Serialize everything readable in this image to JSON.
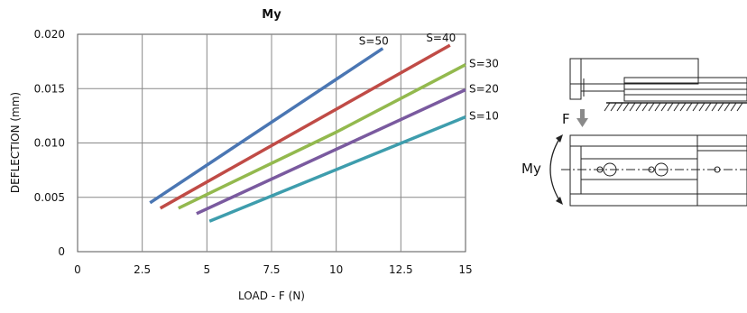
{
  "chart_data": {
    "type": "line",
    "title": "My",
    "xlabel": "LOAD - F (N)",
    "ylabel": "DEFLECTION (mm)",
    "xlim": [
      0,
      15
    ],
    "ylim": [
      0,
      0.02
    ],
    "grid": true,
    "x_ticks": [
      "0",
      "2.5",
      "5",
      "7.5",
      "10",
      "12.5",
      "15"
    ],
    "y_ticks": [
      "0",
      "0.005",
      "0.010",
      "0.015",
      "0.020"
    ],
    "series": [
      {
        "name": "S=50",
        "color": "#4a76b3",
        "label_pos": "top",
        "points": [
          [
            2.8,
            0.0045
          ],
          [
            11.8,
            0.0187
          ]
        ]
      },
      {
        "name": "S=40",
        "color": "#c04b46",
        "label_pos": "top",
        "points": [
          [
            3.2,
            0.004
          ],
          [
            14.4,
            0.019
          ]
        ]
      },
      {
        "name": "S=30",
        "color": "#93b94e",
        "label_pos": "right",
        "points": [
          [
            3.9,
            0.004
          ],
          [
            10.0,
            0.011
          ],
          [
            15.0,
            0.0172
          ]
        ]
      },
      {
        "name": "S=20",
        "color": "#7a5a9f",
        "label_pos": "right",
        "points": [
          [
            4.6,
            0.0035
          ],
          [
            15.0,
            0.0149
          ]
        ]
      },
      {
        "name": "S=10",
        "color": "#3e9dad",
        "label_pos": "right",
        "points": [
          [
            5.1,
            0.0028
          ],
          [
            15.0,
            0.0124
          ]
        ]
      }
    ]
  },
  "diagram": {
    "force_label": "F",
    "moment_label": "My",
    "arrow_color": "#8a8a8a"
  }
}
